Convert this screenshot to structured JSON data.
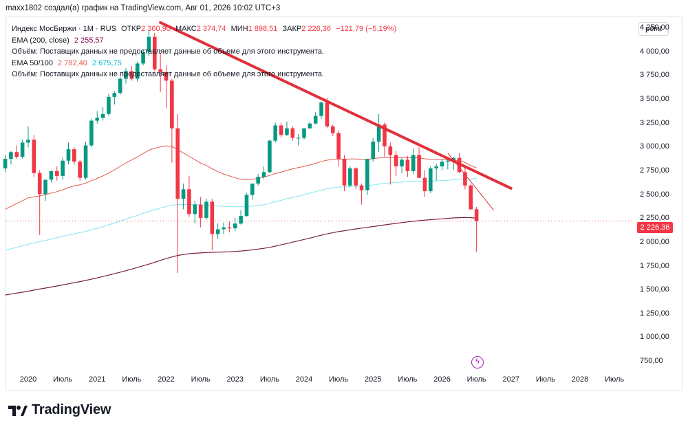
{
  "caption": "maxx1802 создал(а) график на TradingView.com, Авг 01, 2026 10:02 UTC+3",
  "legend": {
    "symbol": "Индекс МосБиржи · 1M · RUS",
    "open_label": "ОТКР",
    "open_value": "2 360,90",
    "high_label": "МАКС",
    "high_value": "2 374,74",
    "low_label": "МИН",
    "low_value": "1 898,51",
    "close_label": "ЗАКР",
    "close_value": "2 226,36",
    "change": "−121,79 (−5,19%)",
    "ema200_label": "EMA (200, close)",
    "ema200_value": "2 255,57",
    "volume_note": "Объём: Поставщик данных не предоставляет данные об объеме для этого инструмента.",
    "ema50_100_label": "EMA 50/100",
    "ema50_value": "2 782,40",
    "ema100_value": "2 675,75",
    "volume_note_2": "Объём: Поставщик данных не предоставляет данные об объеме для этого инструмента."
  },
  "scale_button": "point",
  "last_price_tag": "2 226,36",
  "flash_icon": "lightning-icon",
  "brand": "TradingView",
  "colors": {
    "up": "#089981",
    "down": "#f23645",
    "ema50": "#e4574e",
    "ema100": "#7fe6f0",
    "ema200": "#7a1f3d",
    "trendline": "#e0303b"
  },
  "chart_data": {
    "type": "candlestick",
    "timeframe": "1M",
    "ylim": [
      650,
      4330
    ],
    "y_ticks": [
      "4 250,00",
      "4 000,00",
      "3 750,00",
      "3 500,00",
      "3 250,00",
      "3 000,00",
      "2 750,00",
      "2 500,00",
      "2 250,00",
      "2 000,00",
      "1 750,00",
      "1 500,00",
      "1 250,00",
      "1 000,00",
      "750,00"
    ],
    "y_tick_values": [
      4250,
      4000,
      3750,
      3500,
      3250,
      3000,
      2750,
      2500,
      2250,
      2000,
      1750,
      1500,
      1250,
      1000,
      750
    ],
    "x_ticks": [
      "2020",
      "Июль",
      "2021",
      "Июль",
      "2022",
      "Июль",
      "2023",
      "Июль",
      "2024",
      "Июль",
      "2025",
      "Июль",
      "2026",
      "Июль",
      "2027",
      "Июль",
      "2028",
      "Июль"
    ],
    "x_tick_months": [
      "2020-01",
      "2020-07",
      "2021-01",
      "2021-07",
      "2022-01",
      "2022-07",
      "2023-01",
      "2023-07",
      "2024-01",
      "2024-07",
      "2025-01",
      "2025-07",
      "2026-01",
      "2026-07",
      "2027-01",
      "2027-07",
      "2028-01",
      "2028-07"
    ],
    "months": [
      "2019-09",
      "2019-10",
      "2019-11",
      "2019-12",
      "2020-01",
      "2020-02",
      "2020-03",
      "2020-04",
      "2020-05",
      "2020-06",
      "2020-07",
      "2020-08",
      "2020-09",
      "2020-10",
      "2020-11",
      "2020-12",
      "2021-01",
      "2021-02",
      "2021-03",
      "2021-04",
      "2021-05",
      "2021-06",
      "2021-07",
      "2021-08",
      "2021-09",
      "2021-10",
      "2021-11",
      "2021-12",
      "2022-01",
      "2022-02",
      "2022-03",
      "2022-04",
      "2022-05",
      "2022-06",
      "2022-07",
      "2022-08",
      "2022-09",
      "2022-10",
      "2022-11",
      "2022-12",
      "2023-01",
      "2023-02",
      "2023-03",
      "2023-04",
      "2023-05",
      "2023-06",
      "2023-07",
      "2023-08",
      "2023-09",
      "2023-10",
      "2023-11",
      "2023-12",
      "2024-01",
      "2024-02",
      "2024-03",
      "2024-04",
      "2024-05",
      "2024-06",
      "2024-07",
      "2024-08",
      "2024-09",
      "2024-10",
      "2024-11",
      "2024-12",
      "2025-01",
      "2025-02",
      "2025-03",
      "2025-04",
      "2025-05",
      "2025-06",
      "2025-07",
      "2025-08",
      "2025-09",
      "2025-10",
      "2025-11",
      "2025-12",
      "2026-01",
      "2026-02",
      "2026-03",
      "2026-04",
      "2026-05",
      "2026-06",
      "2026-07",
      "2026-08"
    ],
    "candles": [
      [
        2780,
        2920,
        2740,
        2880
      ],
      [
        2880,
        2960,
        2820,
        2950
      ],
      [
        2950,
        3020,
        2880,
        2900
      ],
      [
        2900,
        3080,
        2880,
        3050
      ],
      [
        3050,
        3220,
        3000,
        3080
      ],
      [
        3080,
        3130,
        2690,
        2730
      ],
      [
        2730,
        2760,
        2080,
        2510
      ],
      [
        2510,
        2650,
        2440,
        2660
      ],
      [
        2660,
        2760,
        2630,
        2750
      ],
      [
        2750,
        2800,
        2650,
        2700
      ],
      [
        2700,
        2890,
        2660,
        2860
      ],
      [
        2860,
        3050,
        2820,
        2980
      ],
      [
        2980,
        3000,
        2820,
        2850
      ],
      [
        2850,
        2870,
        2650,
        2680
      ],
      [
        2680,
        3060,
        2660,
        3020
      ],
      [
        3020,
        3300,
        3000,
        3280
      ],
      [
        3280,
        3380,
        3250,
        3310
      ],
      [
        3310,
        3420,
        3280,
        3350
      ],
      [
        3350,
        3560,
        3330,
        3530
      ],
      [
        3530,
        3590,
        3450,
        3570
      ],
      [
        3570,
        3740,
        3550,
        3720
      ],
      [
        3720,
        3830,
        3670,
        3800
      ],
      [
        3800,
        3850,
        3700,
        3720
      ],
      [
        3720,
        3900,
        3690,
        3880
      ],
      [
        3880,
        4020,
        3860,
        4000
      ],
      [
        4000,
        4230,
        3960,
        4160
      ],
      [
        4160,
        4200,
        3800,
        3820
      ],
      [
        3820,
        3990,
        3580,
        3790
      ],
      [
        3790,
        3860,
        3410,
        3700
      ],
      [
        3700,
        3720,
        2840,
        3200
      ],
      [
        3200,
        3350,
        1680,
        2460
      ],
      [
        2460,
        2620,
        2350,
        2560
      ],
      [
        2560,
        2700,
        2270,
        2300
      ],
      [
        2300,
        2440,
        2200,
        2400
      ],
      [
        2400,
        2480,
        2160,
        2260
      ],
      [
        2260,
        2460,
        2240,
        2430
      ],
      [
        2430,
        2460,
        1920,
        2090
      ],
      [
        2090,
        2200,
        2040,
        2140
      ],
      [
        2140,
        2210,
        2090,
        2160
      ],
      [
        2160,
        2220,
        2110,
        2150
      ],
      [
        2150,
        2260,
        2120,
        2200
      ],
      [
        2200,
        2340,
        2190,
        2280
      ],
      [
        2280,
        2520,
        2270,
        2500
      ],
      [
        2500,
        2620,
        2450,
        2620
      ],
      [
        2620,
        2720,
        2600,
        2690
      ],
      [
        2690,
        2800,
        2670,
        2740
      ],
      [
        2740,
        3080,
        2730,
        3070
      ],
      [
        3070,
        3260,
        3050,
        3230
      ],
      [
        3230,
        3260,
        3100,
        3130
      ],
      [
        3130,
        3270,
        3120,
        3200
      ],
      [
        3200,
        3220,
        3070,
        3100
      ],
      [
        3100,
        3140,
        3020,
        3100
      ],
      [
        3100,
        3200,
        3080,
        3200
      ],
      [
        3200,
        3270,
        3190,
        3250
      ],
      [
        3250,
        3370,
        3240,
        3330
      ],
      [
        3330,
        3480,
        3300,
        3470
      ],
      [
        3470,
        3520,
        3200,
        3220
      ],
      [
        3220,
        3240,
        3120,
        3150
      ],
      [
        3150,
        3180,
        2800,
        2880
      ],
      [
        2880,
        2920,
        2540,
        2600
      ],
      [
        2600,
        2800,
        2580,
        2780
      ],
      [
        2780,
        2790,
        2560,
        2600
      ],
      [
        2600,
        2620,
        2400,
        2550
      ],
      [
        2550,
        2880,
        2500,
        2880
      ],
      [
        2880,
        3100,
        2850,
        3060
      ],
      [
        3060,
        3350,
        2950,
        3240
      ],
      [
        3240,
        3260,
        2900,
        3010
      ],
      [
        3010,
        3050,
        2610,
        2920
      ],
      [
        2920,
        2960,
        2700,
        2800
      ],
      [
        2800,
        2890,
        2730,
        2870
      ],
      [
        2870,
        2910,
        2690,
        2750
      ],
      [
        2750,
        2990,
        2720,
        2920
      ],
      [
        2920,
        3000,
        2680,
        2680
      ],
      [
        2680,
        2760,
        2480,
        2540
      ],
      [
        2540,
        2800,
        2520,
        2780
      ],
      [
        2780,
        2830,
        2650,
        2800
      ],
      [
        2800,
        2880,
        2760,
        2850
      ],
      [
        2850,
        2890,
        2770,
        2860
      ],
      [
        2860,
        2900,
        2760,
        2890
      ],
      [
        2890,
        2940,
        2730,
        2740
      ],
      [
        2740,
        2800,
        2560,
        2600
      ],
      [
        2600,
        2620,
        2340,
        2350
      ],
      [
        2350,
        2375,
        1900,
        2226
      ]
    ],
    "ema200": [
      1450,
      1460,
      1470,
      1480,
      1490,
      1502,
      1513,
      1523,
      1534,
      1545,
      1556,
      1568,
      1580,
      1591,
      1603,
      1617,
      1630,
      1644,
      1659,
      1674,
      1690,
      1706,
      1722,
      1740,
      1757,
      1774,
      1793,
      1813,
      1833,
      1850,
      1865,
      1875,
      1883,
      1888,
      1892,
      1896,
      1898,
      1900,
      1902,
      1904,
      1908,
      1912,
      1918,
      1924,
      1932,
      1940,
      1950,
      1963,
      1977,
      1990,
      2005,
      2019,
      2033,
      2048,
      2063,
      2078,
      2092,
      2105,
      2116,
      2125,
      2135,
      2144,
      2152,
      2160,
      2168,
      2177,
      2186,
      2194,
      2202,
      2210,
      2217,
      2224,
      2230,
      2236,
      2241,
      2246,
      2250,
      2255,
      2259,
      2262,
      2264,
      2262,
      2256
    ],
    "ema100": [
      1920,
      1935,
      1950,
      1966,
      1982,
      1997,
      2010,
      2024,
      2038,
      2052,
      2066,
      2080,
      2093,
      2105,
      2118,
      2134,
      2150,
      2168,
      2187,
      2206,
      2226,
      2246,
      2266,
      2286,
      2307,
      2328,
      2346,
      2362,
      2380,
      2395,
      2398,
      2400,
      2400,
      2399,
      2396,
      2395,
      2390,
      2384,
      2380,
      2377,
      2376,
      2376,
      2378,
      2383,
      2390,
      2398,
      2412,
      2429,
      2444,
      2461,
      2474,
      2488,
      2502,
      2518,
      2535,
      2552,
      2565,
      2576,
      2583,
      2586,
      2590,
      2592,
      2593,
      2598,
      2605,
      2615,
      2622,
      2628,
      2632,
      2636,
      2640,
      2645,
      2645,
      2643,
      2645,
      2648,
      2652,
      2655,
      2660,
      2665,
      2667,
      2669,
      2675
    ],
    "ema50": [
      2350,
      2380,
      2410,
      2440,
      2470,
      2480,
      2490,
      2505,
      2520,
      2535,
      2555,
      2577,
      2595,
      2607,
      2625,
      2650,
      2675,
      2700,
      2730,
      2765,
      2800,
      2835,
      2868,
      2900,
      2935,
      2970,
      2990,
      3005,
      3015,
      3010,
      2975,
      2940,
      2905,
      2870,
      2835,
      2810,
      2775,
      2745,
      2720,
      2700,
      2680,
      2665,
      2660,
      2665,
      2675,
      2688,
      2705,
      2725,
      2740,
      2758,
      2774,
      2788,
      2800,
      2815,
      2832,
      2852,
      2865,
      2874,
      2878,
      2875,
      2878,
      2878,
      2875,
      2875,
      2880,
      2890,
      2893,
      2893,
      2893,
      2893,
      2892,
      2893,
      2890,
      2880,
      2875,
      2872,
      2870,
      2868,
      2866,
      2860,
      2840,
      2810,
      2782
    ],
    "trendline_main": {
      "from": [
        "2021-12",
        4310
      ],
      "to": [
        "2027-01",
        2570
      ]
    },
    "trendline_short": {
      "from": [
        "2026-02",
        2940
      ],
      "to": [
        "2026-10",
        2340
      ]
    },
    "last_close": 2226.36
  }
}
